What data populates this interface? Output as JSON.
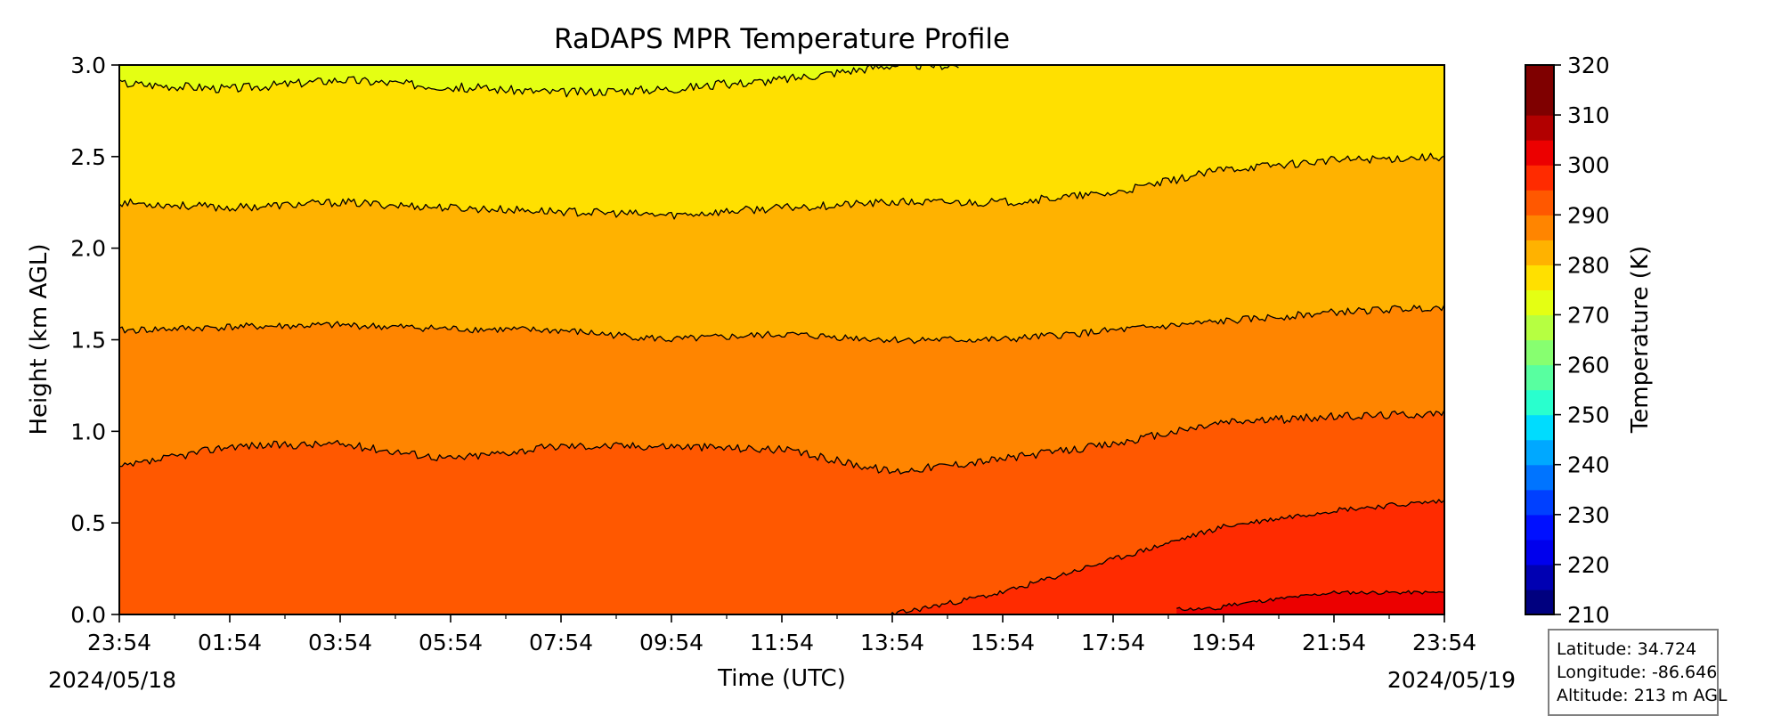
{
  "chart_data": {
    "type": "heatmap",
    "subtype": "filled-contour",
    "title": "RaDAPS MPR Temperature Profile",
    "xlabel": "Time (UTC)",
    "ylabel": "Height (km AGL)",
    "x_tick_labels": [
      "23:54",
      "01:54",
      "03:54",
      "05:54",
      "07:54",
      "09:54",
      "11:54",
      "13:54",
      "15:54",
      "17:54",
      "19:54",
      "21:54",
      "23:54"
    ],
    "x_start_date": "2024/05/18",
    "x_end_date": "2024/05/19",
    "y_ticks": [
      "0.0",
      "0.5",
      "1.0",
      "1.5",
      "2.0",
      "2.5",
      "3.0"
    ],
    "ylim": [
      0,
      3
    ],
    "colorbar": {
      "label": "Temperature (K)",
      "ticks": [
        "210",
        "220",
        "230",
        "240",
        "250",
        "260",
        "270",
        "280",
        "290",
        "300",
        "310",
        "320"
      ],
      "range": [
        210,
        320
      ],
      "level_step": 5,
      "colors": [
        "#00007f",
        "#0000b2",
        "#0000ed",
        "#0010ff",
        "#0040ff",
        "#0074ff",
        "#00a8ff",
        "#00dcfe",
        "#29ffce",
        "#58ffa0",
        "#87ff70",
        "#b6ff41",
        "#e4ff13",
        "#ffe000",
        "#ffb200",
        "#ff8500",
        "#ff5800",
        "#ff2b00",
        "#ec0000",
        "#b20000",
        "#7f0000",
        "#7f0000"
      ]
    },
    "contour_levels_K": [
      270,
      275,
      280,
      285,
      290,
      295,
      300
    ],
    "contour_height_km_by_tick": {
      "level_300": [
        null,
        null,
        null,
        null,
        null,
        null,
        null,
        null,
        null,
        null,
        0.05,
        0.12,
        0.12
      ],
      "level_295": [
        null,
        null,
        null,
        null,
        null,
        null,
        null,
        0.0,
        0.12,
        0.3,
        0.48,
        0.57,
        0.62
      ],
      "level_290": [
        0.8,
        0.92,
        0.93,
        0.85,
        0.92,
        0.92,
        0.9,
        0.78,
        0.85,
        0.93,
        1.05,
        1.08,
        1.1
      ],
      "level_285": [
        1.55,
        1.57,
        1.58,
        1.56,
        1.55,
        1.5,
        1.53,
        1.5,
        1.5,
        1.55,
        1.6,
        1.65,
        1.68
      ],
      "level_280": [
        2.25,
        2.22,
        2.25,
        2.22,
        2.2,
        2.18,
        2.22,
        2.25,
        2.25,
        2.3,
        2.43,
        2.48,
        2.5
      ],
      "level_275": [
        2.9,
        2.87,
        2.92,
        2.88,
        2.85,
        2.87,
        2.92,
        3.0,
        null,
        null,
        null,
        null,
        null
      ]
    },
    "grid": false,
    "legend": "colorbar-right"
  },
  "info": {
    "latitude": "Latitude: 34.724",
    "longitude": "Longitude: -86.646",
    "altitude": "Altitude: 213 m AGL"
  }
}
